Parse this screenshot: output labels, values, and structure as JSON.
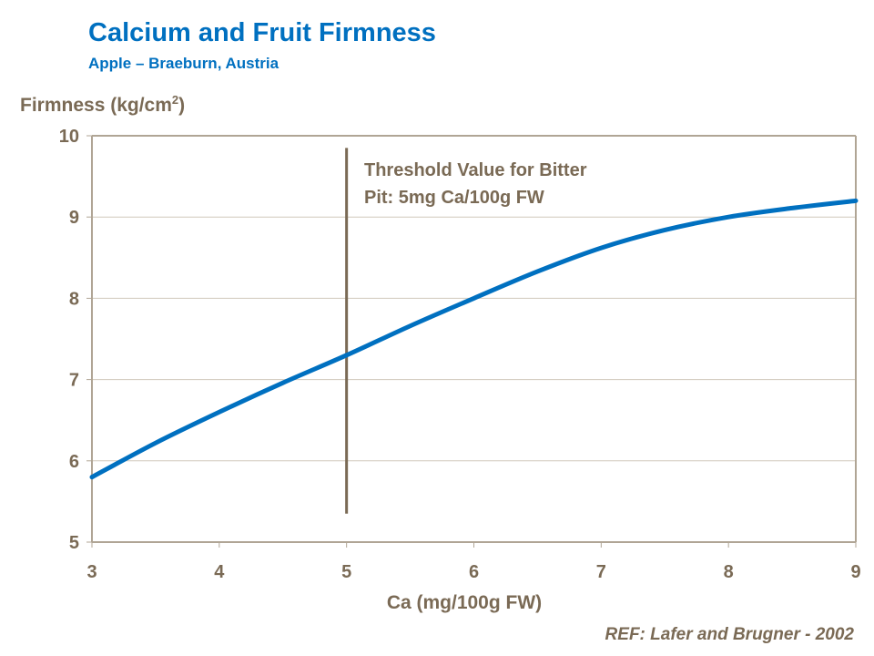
{
  "chart_data": {
    "type": "line",
    "title": "Calcium and Fruit Firmness",
    "subtitle": "Apple – Braeburn, Austria",
    "ylabel": "Firmness (kg/cm",
    "ylabel_sup": "2",
    "ylabel_end": ")",
    "xlabel": "Ca (mg/100g FW)",
    "xlim": [
      3,
      9
    ],
    "ylim": [
      5,
      10
    ],
    "xticks": [
      3,
      4,
      5,
      6,
      7,
      8,
      9
    ],
    "yticks": [
      5,
      6,
      7,
      8,
      9,
      10
    ],
    "grid": "horizontal",
    "series": [
      {
        "x": [
          3,
          3.5,
          4,
          4.5,
          5,
          5.5,
          6,
          6.5,
          7,
          7.5,
          8,
          8.5,
          9
        ],
        "y": [
          5.8,
          6.22,
          6.6,
          6.96,
          7.3,
          7.66,
          8.0,
          8.33,
          8.62,
          8.84,
          9.0,
          9.11,
          9.2
        ],
        "color": "#0070c0"
      }
    ],
    "threshold": {
      "x": 5,
      "y_range": [
        5.35,
        9.85
      ],
      "color": "#7a6a55",
      "label_line1": "Threshold Value for Bitter",
      "label_line2": "Pit: 5mg Ca/100g FW"
    },
    "reference": "REF: Lafer and Brugner - 2002"
  }
}
